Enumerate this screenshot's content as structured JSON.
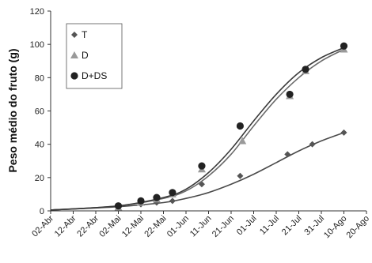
{
  "chart_data": {
    "type": "scatter",
    "title": "",
    "xlabel": "",
    "ylabel": "Peso médio do fruto (g)",
    "ylim": [
      0,
      120
    ],
    "y_ticks": [
      0,
      20,
      40,
      60,
      80,
      100,
      120
    ],
    "x_ticks": [
      "02-Abr",
      "12-Abr",
      "22-Abr",
      "02-Mai",
      "12-Mai",
      "22-Mai",
      "01-Jun",
      "11-Jun",
      "21-Jun",
      "01-Jul",
      "11-Jul",
      "21-Jul",
      "31-Jul",
      "10-Ago",
      "20-Ago"
    ],
    "grid": false,
    "legend_position": "top-left",
    "series": [
      {
        "name": "T",
        "marker": "diamond",
        "color": "#555555",
        "points": [
          {
            "x": "2006-05-02",
            "y": 2
          },
          {
            "x": "2006-05-12",
            "y": 4
          },
          {
            "x": "2006-05-19",
            "y": 5
          },
          {
            "x": "2006-05-26",
            "y": 6
          },
          {
            "x": "2006-06-08",
            "y": 16
          },
          {
            "x": "2006-06-25",
            "y": 21
          },
          {
            "x": "2006-07-16",
            "y": 34
          },
          {
            "x": "2006-07-27",
            "y": 40
          },
          {
            "x": "2006-08-10",
            "y": 47
          }
        ],
        "trend": [
          {
            "x": "2006-04-02",
            "y": 0.5
          },
          {
            "x": "2006-05-02",
            "y": 2.5
          },
          {
            "x": "2006-05-22",
            "y": 5
          },
          {
            "x": "2006-06-01",
            "y": 7.5
          },
          {
            "x": "2006-06-11",
            "y": 11
          },
          {
            "x": "2006-06-21",
            "y": 16
          },
          {
            "x": "2006-07-01",
            "y": 22
          },
          {
            "x": "2006-07-11",
            "y": 29
          },
          {
            "x": "2006-07-21",
            "y": 36
          },
          {
            "x": "2006-07-31",
            "y": 42
          },
          {
            "x": "2006-08-10",
            "y": 47
          }
        ]
      },
      {
        "name": "D",
        "marker": "triangle",
        "color": "#9a9a9a",
        "points": [
          {
            "x": "2006-05-02",
            "y": 2
          },
          {
            "x": "2006-05-12",
            "y": 5
          },
          {
            "x": "2006-05-19",
            "y": 7
          },
          {
            "x": "2006-05-26",
            "y": 10
          },
          {
            "x": "2006-06-08",
            "y": 25
          },
          {
            "x": "2006-06-26",
            "y": 42
          },
          {
            "x": "2006-07-17",
            "y": 69
          },
          {
            "x": "2006-07-24",
            "y": 84
          },
          {
            "x": "2006-08-10",
            "y": 97
          }
        ],
        "trend": [
          {
            "x": "2006-04-02",
            "y": 0.5
          },
          {
            "x": "2006-05-02",
            "y": 3
          },
          {
            "x": "2006-05-22",
            "y": 7.5
          },
          {
            "x": "2006-06-01",
            "y": 12
          },
          {
            "x": "2006-06-11",
            "y": 21
          },
          {
            "x": "2006-06-21",
            "y": 34
          },
          {
            "x": "2006-07-01",
            "y": 51
          },
          {
            "x": "2006-07-11",
            "y": 67
          },
          {
            "x": "2006-07-21",
            "y": 80
          },
          {
            "x": "2006-07-31",
            "y": 90
          },
          {
            "x": "2006-08-10",
            "y": 97
          }
        ]
      },
      {
        "name": "D+DS",
        "marker": "circle",
        "color": "#222222",
        "points": [
          {
            "x": "2006-05-02",
            "y": 3
          },
          {
            "x": "2006-05-12",
            "y": 6
          },
          {
            "x": "2006-05-19",
            "y": 8
          },
          {
            "x": "2006-05-26",
            "y": 11
          },
          {
            "x": "2006-06-08",
            "y": 27
          },
          {
            "x": "2006-06-25",
            "y": 51
          },
          {
            "x": "2006-07-17",
            "y": 70
          },
          {
            "x": "2006-07-24",
            "y": 85
          },
          {
            "x": "2006-08-10",
            "y": 99
          }
        ],
        "trend": [
          {
            "x": "2006-04-02",
            "y": 0.5
          },
          {
            "x": "2006-05-02",
            "y": 3
          },
          {
            "x": "2006-05-22",
            "y": 8
          },
          {
            "x": "2006-06-01",
            "y": 13
          },
          {
            "x": "2006-06-11",
            "y": 23
          },
          {
            "x": "2006-06-21",
            "y": 37
          },
          {
            "x": "2006-07-01",
            "y": 54
          },
          {
            "x": "2006-07-11",
            "y": 70
          },
          {
            "x": "2006-07-21",
            "y": 83
          },
          {
            "x": "2006-07-31",
            "y": 92
          },
          {
            "x": "2006-08-10",
            "y": 98
          }
        ]
      }
    ]
  }
}
